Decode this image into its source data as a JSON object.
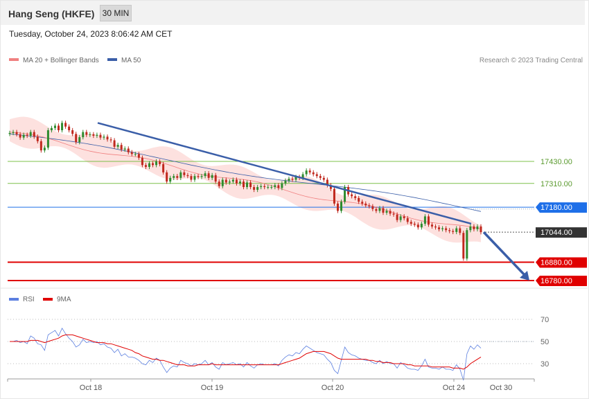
{
  "header": {
    "title": "Hang Seng (HKFE)",
    "timeframe": "30 MIN"
  },
  "timestamp": "Tuesday, October 24, 2023 8:06:42 AM CET",
  "legend": {
    "ma20_label": "MA 20 + Bollinger Bands",
    "ma50_label": "MA 50",
    "ma20_color": "#f08080",
    "ma50_color": "#3a5ea8"
  },
  "copyright": "Research © 2023 Trading Central",
  "rsi_legend": {
    "rsi_label": "RSI",
    "ma_label": "9MA",
    "rsi_color": "#5b7fe0",
    "ma_color": "#e00000"
  },
  "chart_data": [
    {
      "type": "candlestick",
      "title": "Hang Seng (HKFE)",
      "x_ticks": [
        "Oct 18",
        "Oct 19",
        "Oct 20",
        "Oct 24",
        "Oct 30"
      ],
      "ylim": [
        16720,
        17700
      ],
      "levels": [
        {
          "value": 17430,
          "label": "17430.00",
          "role": "resistance",
          "color": "#7cc04a"
        },
        {
          "value": 17310,
          "label": "17310.00",
          "role": "resistance",
          "color": "#7cc04a"
        },
        {
          "value": 17180,
          "label": "17180.00",
          "role": "pivot",
          "color": "#1e6fe8"
        },
        {
          "value": 17044,
          "label": "17044.00",
          "role": "last",
          "color": "#333333"
        },
        {
          "value": 16880,
          "label": "16880.00",
          "role": "support",
          "color": "#e00000"
        },
        {
          "value": 16780,
          "label": "16780.00",
          "role": "support",
          "color": "#e00000"
        }
      ],
      "close": [
        17585,
        17590,
        17578,
        17560,
        17575,
        17570,
        17590,
        17565,
        17540,
        17490,
        17505,
        17600,
        17612,
        17625,
        17600,
        17640,
        17620,
        17600,
        17580,
        17535,
        17562,
        17590,
        17575,
        17578,
        17570,
        17575,
        17560,
        17565,
        17550,
        17545,
        17510,
        17520,
        17495,
        17500,
        17480,
        17470,
        17470,
        17450,
        17410,
        17400,
        17420,
        17410,
        17430,
        17415,
        17370,
        17320,
        17340,
        17350,
        17340,
        17370,
        17355,
        17350,
        17330,
        17350,
        17345,
        17350,
        17365,
        17340,
        17355,
        17320,
        17295,
        17330,
        17315,
        17320,
        17330,
        17310,
        17320,
        17290,
        17315,
        17290,
        17275,
        17290,
        17295,
        17290,
        17290,
        17290,
        17300,
        17285,
        17310,
        17325,
        17335,
        17330,
        17345,
        17340,
        17360,
        17380,
        17370,
        17360,
        17350,
        17340,
        17330,
        17300,
        17280,
        17200,
        17160,
        17210,
        17290,
        17250,
        17240,
        17230,
        17210,
        17200,
        17190,
        17185,
        17170,
        17160,
        17175,
        17150,
        17160,
        17145,
        17140,
        17110,
        17130,
        17120,
        17100,
        17090,
        17085,
        17070,
        17090,
        17130,
        17085,
        17075,
        17070,
        17060,
        17065,
        17055,
        17050,
        17045,
        17065,
        17040,
        16900,
        17055,
        17075,
        17060,
        17075,
        17044
      ],
      "open": [
        17580,
        17585,
        17590,
        17578,
        17560,
        17575,
        17570,
        17590,
        17565,
        17540,
        17490,
        17505,
        17600,
        17612,
        17625,
        17600,
        17640,
        17620,
        17600,
        17580,
        17535,
        17562,
        17590,
        17575,
        17578,
        17570,
        17575,
        17560,
        17565,
        17550,
        17545,
        17510,
        17520,
        17495,
        17500,
        17480,
        17470,
        17470,
        17450,
        17410,
        17400,
        17420,
        17410,
        17430,
        17415,
        17370,
        17320,
        17340,
        17350,
        17340,
        17370,
        17355,
        17350,
        17330,
        17350,
        17345,
        17350,
        17365,
        17340,
        17355,
        17320,
        17295,
        17330,
        17315,
        17320,
        17330,
        17310,
        17320,
        17290,
        17315,
        17290,
        17275,
        17290,
        17295,
        17290,
        17290,
        17290,
        17300,
        17285,
        17310,
        17325,
        17335,
        17330,
        17345,
        17340,
        17360,
        17380,
        17370,
        17360,
        17350,
        17340,
        17330,
        17300,
        17280,
        17200,
        17160,
        17210,
        17290,
        17250,
        17240,
        17230,
        17210,
        17200,
        17190,
        17185,
        17170,
        17160,
        17175,
        17150,
        17160,
        17145,
        17140,
        17110,
        17130,
        17120,
        17100,
        17090,
        17085,
        17070,
        17090,
        17130,
        17085,
        17075,
        17070,
        17060,
        17065,
        17055,
        17050,
        17045,
        17065,
        17040,
        16900,
        17055,
        17075,
        17060,
        17075
      ],
      "bollinger": {
        "upper_start": 17660,
        "upper_end": 17110,
        "lower_start": 17540,
        "lower_end": 16970
      },
      "ma20": {
        "start": 17590,
        "end": 17050
      },
      "ma50": {
        "start": 17580,
        "end": 17160
      },
      "trendline": {
        "from": 17640,
        "to": 17090
      },
      "projection": {
        "from": 17044,
        "to": 16780
      }
    },
    {
      "type": "line",
      "title": "RSI",
      "yticks": [
        70,
        50,
        30
      ],
      "series": [
        {
          "name": "RSI",
          "values": [
            50,
            50,
            51,
            49,
            50,
            48,
            55,
            53,
            48,
            47,
            42,
            56,
            58,
            60,
            55,
            62,
            57,
            53,
            50,
            45,
            47,
            52,
            49,
            50,
            49,
            50,
            47,
            48,
            45,
            44,
            40,
            43,
            37,
            39,
            36,
            36,
            35,
            33,
            30,
            29,
            33,
            31,
            35,
            33,
            27,
            22,
            26,
            28,
            27,
            33,
            31,
            30,
            28,
            30,
            29,
            30,
            33,
            29,
            31,
            27,
            25,
            31,
            29,
            30,
            31,
            29,
            30,
            27,
            31,
            28,
            26,
            29,
            30,
            29,
            29,
            29,
            30,
            28,
            33,
            36,
            38,
            37,
            40,
            39,
            43,
            46,
            44,
            42,
            40,
            39,
            38,
            34,
            31,
            24,
            21,
            33,
            45,
            40,
            38,
            37,
            35,
            34,
            33,
            33,
            31,
            30,
            33,
            30,
            32,
            30,
            30,
            26,
            31,
            29,
            26,
            25,
            25,
            24,
            28,
            34,
            27,
            26,
            26,
            25,
            27,
            25,
            25,
            24,
            29,
            25,
            15,
            39,
            46,
            43,
            47,
            44
          ]
        },
        {
          "name": "9MA",
          "values": [
            50,
            50,
            50,
            50,
            50,
            50,
            51,
            51,
            51,
            50,
            49,
            50,
            51,
            52,
            53,
            55,
            56,
            56,
            56,
            55,
            54,
            53,
            52,
            51,
            50,
            49,
            49,
            49,
            48,
            48,
            47,
            46,
            45,
            44,
            43,
            42,
            40,
            39,
            37,
            36,
            35,
            34,
            34,
            33,
            33,
            32,
            31,
            30,
            29,
            29,
            29,
            28,
            28,
            28,
            29,
            29,
            29,
            29,
            30,
            29,
            29,
            29,
            29,
            29,
            29,
            29,
            29,
            29,
            29,
            29,
            29,
            29,
            29,
            29,
            29,
            29,
            29,
            29,
            30,
            31,
            32,
            33,
            34,
            35,
            37,
            39,
            40,
            41,
            41,
            41,
            41,
            40,
            39,
            37,
            35,
            34,
            34,
            34,
            34,
            34,
            34,
            34,
            34,
            33,
            33,
            32,
            32,
            31,
            31,
            31,
            30,
            30,
            30,
            30,
            29,
            29,
            28,
            28,
            28,
            28,
            28,
            27,
            27,
            27,
            27,
            27,
            27,
            26,
            26,
            26,
            25,
            27,
            30,
            32,
            34,
            36
          ]
        }
      ]
    }
  ]
}
